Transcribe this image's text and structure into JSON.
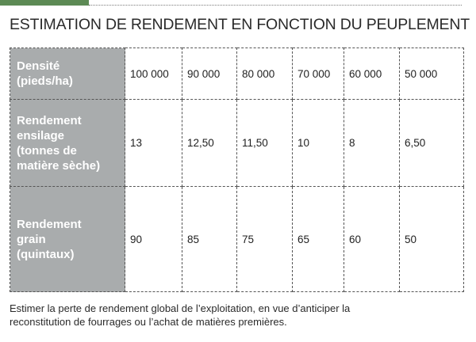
{
  "title": "ESTIMATION DE RENDEMENT EN FONCTION DU PEUPLEMENT",
  "table": {
    "rows": [
      {
        "header_lines": [
          "Densité",
          "(pieds/ha)"
        ],
        "cells": [
          "100 000",
          "90 000",
          "80 000",
          "70 000",
          "60 000",
          "50 000"
        ]
      },
      {
        "header_lines": [
          "Rendement",
          "ensilage",
          "(tonnes de",
          "matière sèche)"
        ],
        "cells": [
          "13",
          "12,50",
          "11,50",
          "10",
          "8",
          "6,50"
        ]
      },
      {
        "header_lines": [
          "Rendement",
          "grain",
          "(quintaux)"
        ],
        "cells": [
          "90",
          "85",
          "75",
          "65",
          "60",
          "50"
        ]
      }
    ]
  },
  "footnote": {
    "line1": "Estimer la perte de rendement global de l’exploitation, en vue d’anticiper la",
    "line2": "reconstitution de fourrages ou l’achat de matières premières."
  },
  "colors": {
    "accent": "#5d8a55",
    "header_bg": "#a9acad",
    "header_text": "#ffffff"
  }
}
